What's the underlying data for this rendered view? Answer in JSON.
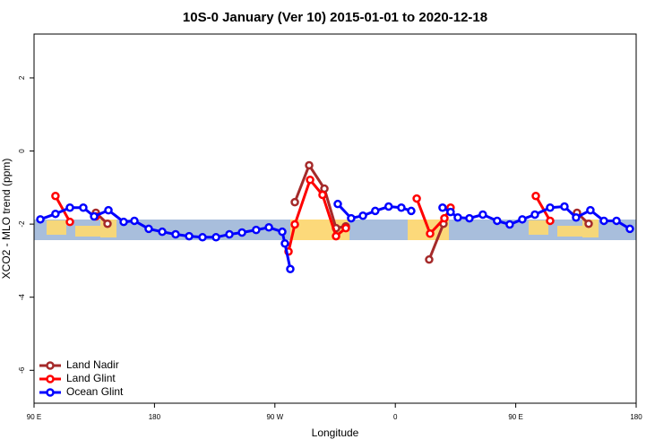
{
  "chart_data": {
    "type": "line",
    "title": "10S-0 January (Ver 10)   2015-01-01 to 2020-12-18",
    "x_label": "Longitude",
    "y_label": "XCO2 - MLO trend (ppm)",
    "xlim": [
      90,
      540
    ],
    "xticks": [
      {
        "value": 90,
        "label": "90 E"
      },
      180,
      {
        "value": 270,
        "label": "90 W"
      },
      {
        "value": 360,
        "label": "0"
      },
      {
        "value": 450,
        "label": "90 E"
      },
      {
        "value": 540,
        "label": "180"
      }
    ],
    "ylim": [
      -6.9,
      3.2
    ],
    "yticks": [
      -6,
      -4,
      -2,
      0,
      2
    ],
    "legend": "bottom-left",
    "series": [
      {
        "name": "Land Nadir",
        "color": "#a52a2a",
        "x": [
          136.2,
          144.9,
          null,
          284.9,
          295.6,
          307,
          315.7,
          323,
          null,
          385.3,
          396,
          null,
          495.8,
          504.5
        ],
        "values": [
          -1.69,
          -1.99,
          null,
          -1.4,
          -0.39,
          -1.03,
          -2.11,
          -2.06,
          null,
          -2.97,
          -1.99,
          null,
          -1.69,
          -1.99
        ]
      },
      {
        "name": "Land Glint",
        "color": "#ff0000",
        "x": [
          106,
          116.8,
          null,
          136.2,
          null,
          280.2,
          284.9,
          296.3,
          305.6,
          315.7,
          323,
          null,
          376,
          386,
          396.7,
          401.3,
          null,
          465,
          475.7
        ],
        "values": [
          -1.23,
          -1.94,
          null,
          -1.79,
          null,
          -2.75,
          -2.01,
          -0.79,
          -1.2,
          -2.33,
          -2.11,
          null,
          -1.3,
          -2.26,
          -1.84,
          -1.55,
          null,
          -1.23,
          -1.91
        ]
      },
      {
        "name": "Ocean Glint",
        "color": "#0000ff",
        "x": [
          94.7,
          106,
          116.8,
          126.8,
          134.9,
          145.6,
          157,
          165,
          175.7,
          185.8,
          195.8,
          205.9,
          215.9,
          226,
          236,
          245.4,
          256,
          265.5,
          275.5,
          277.5,
          281.5,
          null,
          317,
          327,
          335.8,
          345,
          355,
          364.5,
          371.9,
          null,
          395.3,
          401.3,
          406.7,
          415.4,
          425.4,
          436.1,
          445.5,
          454.9,
          464.3,
          475.7,
          486.4,
          495.1,
          505.8,
          515.9,
          525.3,
          535.3
        ],
        "values": [
          -1.87,
          -1.72,
          -1.55,
          -1.55,
          -1.79,
          -1.62,
          -1.94,
          -1.91,
          -2.13,
          -2.21,
          -2.28,
          -2.33,
          -2.36,
          -2.36,
          -2.28,
          -2.23,
          -2.16,
          -2.09,
          -2.21,
          -2.53,
          -3.23,
          null,
          -1.45,
          -1.84,
          -1.77,
          -1.64,
          -1.52,
          -1.55,
          -1.64,
          null,
          -1.55,
          -1.67,
          -1.82,
          -1.84,
          -1.74,
          -1.91,
          -2.01,
          -1.87,
          -1.74,
          -1.55,
          -1.52,
          -1.82,
          -1.62,
          -1.91,
          -1.91,
          -2.13
        ]
      }
    ]
  }
}
